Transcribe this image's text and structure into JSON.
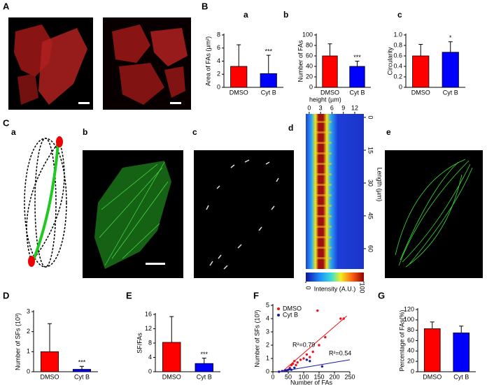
{
  "labels": [
    "A",
    "B",
    "C",
    "a",
    "b",
    "c",
    "e"
  ],
  "chart_data": [
    {
      "type": "bar",
      "title": "a",
      "ylabel": "Area of FAs (µm²)",
      "categories": [
        "DMSO",
        "Cyt B"
      ],
      "values": [
        3.2,
        2.1
      ],
      "errors": [
        3.3,
        2.8
      ],
      "colors": [
        "#ff0000",
        "#0000ff"
      ],
      "ylim": [
        0,
        8
      ],
      "yticks": [
        0,
        2,
        4,
        6,
        8
      ],
      "annotation": "***"
    },
    {
      "type": "bar",
      "title": "b",
      "ylabel": "Number of FAs",
      "categories": [
        "DMSO",
        "Cyt B"
      ],
      "values": [
        60,
        40
      ],
      "errors": [
        23,
        10
      ],
      "colors": [
        "#ff0000",
        "#0000ff"
      ],
      "ylim": [
        0,
        100
      ],
      "yticks": [
        0,
        20,
        40,
        60,
        80,
        100
      ],
      "annotation": "***"
    },
    {
      "type": "bar",
      "title": "c",
      "ylabel": "Circularity",
      "categories": [
        "DMSO",
        "Cyt B"
      ],
      "values": [
        0.6,
        0.67
      ],
      "errors": [
        0.22,
        0.2
      ],
      "colors": [
        "#ff0000",
        "#0000ff"
      ],
      "ylim": [
        0,
        1.0
      ],
      "yticks": [
        0,
        0.2,
        0.4,
        0.6,
        0.8,
        {
          "value": 1,
          "label": "1.0"
        }
      ],
      "annotation": "*"
    },
    {
      "type": "heatmap",
      "title": "d",
      "xlabel": "height (µm)",
      "ylabel": "Length (µm)",
      "xlim": [
        -0.9,
        14.4
      ],
      "xticks": [
        0,
        3,
        6,
        9,
        12
      ],
      "ylim": [
        -1.6,
        69.3
      ],
      "yticks": [
        0,
        15,
        30,
        45,
        60
      ],
      "colorbar_label": "Intensity (A.U.)",
      "clim": [
        0,
        100
      ],
      "cticks": [
        0,
        100
      ]
    },
    {
      "type": "bar",
      "title": "D",
      "ylabel": "Number of SFs (10³)",
      "categories": [
        "DMSO",
        "Cyt B"
      ],
      "values": [
        1.0,
        0.12
      ],
      "errors": [
        1.4,
        0.15
      ],
      "colors": [
        "#ff0000",
        "#0000ff"
      ],
      "ylim": [
        0,
        3
      ],
      "yticks": [
        0,
        1,
        2,
        3
      ],
      "annotation": "***"
    },
    {
      "type": "bar",
      "title": "E",
      "ylabel": "SF/FAs",
      "categories": [
        "DMSO",
        "Cyt B"
      ],
      "values": [
        8.2,
        2.3
      ],
      "errors": [
        7.2,
        1.5
      ],
      "colors": [
        "#ff0000",
        "#0000ff"
      ],
      "ylim": [
        0,
        16
      ],
      "yticks": [
        0,
        4,
        8,
        12,
        16
      ],
      "annotation": "***"
    },
    {
      "type": "scatter",
      "title": "F",
      "xlabel": "Number of FAs",
      "ylabel": "Number of SFs (10³)",
      "xlim": [
        0,
        250
      ],
      "xticks": [
        0,
        50,
        100,
        150,
        200,
        250
      ],
      "ylim": [
        0,
        5
      ],
      "yticks": [
        0,
        1,
        2,
        3,
        4,
        5
      ],
      "series": [
        {
          "name": "DMSO",
          "color": "#e8141e",
          "x": [
            40,
            55,
            60,
            65,
            70,
            75,
            80,
            90,
            100,
            110,
            120,
            130,
            145,
            150,
            170,
            220,
            230
          ],
          "values": [
            0.1,
            0.3,
            0.5,
            0.6,
            0.8,
            0.5,
            0.7,
            0.9,
            1.0,
            1.3,
            1.1,
            1.5,
            4.6,
            2.0,
            2.6,
            4.0,
            4.0
          ],
          "fit_x": [
            30,
            240
          ],
          "fit_y": [
            0,
            4.2
          ],
          "fit_label": "R²=0.79"
        },
        {
          "name": "Cyt B",
          "color": "#1a1aa8",
          "x": [
            20,
            30,
            40,
            45,
            50,
            55,
            60,
            70,
            110,
            120,
            160
          ],
          "values": [
            0,
            0.05,
            0.1,
            0.1,
            0.15,
            0.2,
            0.15,
            0.3,
            0.9,
            0.8,
            0.4
          ],
          "fit_x": [
            20,
            250
          ],
          "fit_y": [
            0,
            0.9
          ],
          "fit_label": "R²=0.54"
        }
      ]
    },
    {
      "type": "bar",
      "title": "G",
      "ylabel": "Percentage of FAs(%)",
      "categories": [
        "DMSO",
        "Cyt B"
      ],
      "values": [
        83,
        75
      ],
      "errors": [
        13,
        13
      ],
      "colors": [
        "#ff0000",
        "#0000ff"
      ],
      "ylim": [
        0,
        120
      ],
      "yticks": [
        0,
        20,
        40,
        60,
        80,
        100,
        120
      ]
    }
  ]
}
